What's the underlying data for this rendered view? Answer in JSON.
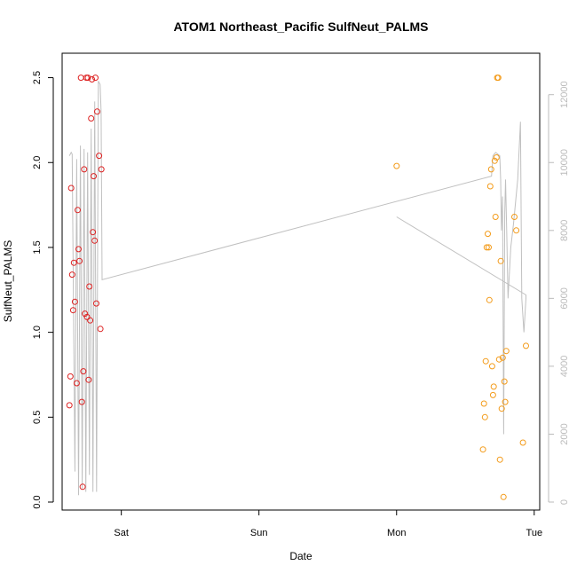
{
  "chart_data": {
    "type": "scatter",
    "title": "ATOM1 Northeast_Pacific SulfNeut_PALMS",
    "xlabel": "Date",
    "ylabel": "SulfNeut_PALMS",
    "x_unit": "days",
    "x_ticks": [
      {
        "x": 1.0,
        "label": "Sat"
      },
      {
        "x": 2.0,
        "label": "Sun"
      },
      {
        "x": 3.0,
        "label": "Mon"
      },
      {
        "x": 4.0,
        "label": "Tue"
      }
    ],
    "xlim": [
      0.57,
      4.04
    ],
    "ylim": [
      0,
      2.55
    ],
    "y_ticks": [
      0.0,
      0.5,
      1.0,
      1.5,
      2.0,
      2.5
    ],
    "y_tick_labels": [
      "0.0",
      "0.5",
      "1.0",
      "1.5",
      "2.0",
      "2.5"
    ],
    "y2lim": [
      0,
      12750
    ],
    "y2_ticks": [
      0,
      2000,
      4000,
      6000,
      8000,
      10000,
      12000
    ],
    "y2_tick_labels": [
      "0",
      "2000",
      "4000",
      "6000",
      "8000",
      "10000",
      "12000"
    ],
    "colors": {
      "series_1": "#dd2222",
      "series_2": "#f39b1a",
      "altitude": "#c0c0c0",
      "axis": "#000000",
      "axis_right": "#bbbbbb"
    },
    "series": [
      {
        "marker": "open-circle",
        "color": "#dd2222",
        "points": [
          [
            0.623,
            0.57
          ],
          [
            0.63,
            0.74
          ],
          [
            0.636,
            1.85
          ],
          [
            0.643,
            1.34
          ],
          [
            0.65,
            1.13
          ],
          [
            0.656,
            1.41
          ],
          [
            0.663,
            1.18
          ],
          [
            0.676,
            0.7
          ],
          [
            0.683,
            1.72
          ],
          [
            0.689,
            1.49
          ],
          [
            0.696,
            1.42
          ],
          [
            0.707,
            2.5
          ],
          [
            0.713,
            0.59
          ],
          [
            0.719,
            0.09
          ],
          [
            0.724,
            0.77
          ],
          [
            0.73,
            1.96
          ],
          [
            0.736,
            1.11
          ],
          [
            0.746,
            2.5
          ],
          [
            0.751,
            1.09
          ],
          [
            0.757,
            2.5
          ],
          [
            0.763,
            0.72
          ],
          [
            0.768,
            1.27
          ],
          [
            0.774,
            1.07
          ],
          [
            0.781,
            2.26
          ],
          [
            0.787,
            2.49
          ],
          [
            0.793,
            1.59
          ],
          [
            0.799,
            1.92
          ],
          [
            0.806,
            1.54
          ],
          [
            0.812,
            2.5
          ],
          [
            0.818,
            1.17
          ],
          [
            0.825,
            2.3
          ],
          [
            0.838,
            2.04
          ],
          [
            0.848,
            1.02
          ],
          [
            0.855,
            1.96
          ]
        ]
      },
      {
        "marker": "open-circle",
        "color": "#f39b1a",
        "points": [
          [
            3.0,
            1.98
          ],
          [
            3.628,
            0.31
          ],
          [
            3.635,
            0.58
          ],
          [
            3.642,
            0.5
          ],
          [
            3.648,
            0.83
          ],
          [
            3.655,
            1.5
          ],
          [
            3.663,
            1.58
          ],
          [
            3.669,
            1.5
          ],
          [
            3.674,
            1.19
          ],
          [
            3.681,
            1.86
          ],
          [
            3.687,
            1.96
          ],
          [
            3.694,
            0.8
          ],
          [
            3.701,
            0.63
          ],
          [
            3.706,
            0.68
          ],
          [
            3.713,
            2.01
          ],
          [
            3.719,
            1.68
          ],
          [
            3.726,
            2.03
          ],
          [
            3.731,
            2.5
          ],
          [
            3.739,
            2.5
          ],
          [
            3.745,
            0.84
          ],
          [
            3.751,
            0.25
          ],
          [
            3.757,
            1.42
          ],
          [
            3.764,
            0.55
          ],
          [
            3.771,
            0.85
          ],
          [
            3.777,
            0.03
          ],
          [
            3.783,
            0.71
          ],
          [
            3.789,
            0.59
          ],
          [
            3.797,
            0.89
          ],
          [
            3.856,
            1.68
          ],
          [
            3.87,
            1.6
          ],
          [
            3.918,
            0.35
          ],
          [
            3.94,
            0.92
          ]
        ]
      }
    ],
    "altitude_track": {
      "axis": "right",
      "color": "#c0c0c0",
      "points": [
        [
          0.623,
          10200
        ],
        [
          0.636,
          10300
        ],
        [
          0.643,
          10250
        ],
        [
          0.663,
          900
        ],
        [
          0.676,
          10100
        ],
        [
          0.689,
          200
        ],
        [
          0.703,
          10500
        ],
        [
          0.716,
          400
        ],
        [
          0.729,
          10400
        ],
        [
          0.742,
          300
        ],
        [
          0.755,
          10300
        ],
        [
          0.768,
          800
        ],
        [
          0.781,
          11000
        ],
        [
          0.794,
          300
        ],
        [
          0.807,
          11800
        ],
        [
          0.82,
          300
        ],
        [
          0.833,
          12400
        ],
        [
          0.846,
          12300
        ],
        [
          0.853,
          11500
        ],
        [
          0.86,
          6550
        ],
        [
          3.69,
          9600
        ],
        [
          3.7,
          10200
        ],
        [
          3.72,
          10300
        ],
        [
          3.75,
          10200
        ],
        [
          3.756,
          9500
        ],
        [
          3.762,
          8000
        ],
        [
          3.77,
          9000
        ],
        [
          3.778,
          2000
        ],
        [
          3.786,
          8500
        ],
        [
          3.792,
          9500
        ],
        [
          3.8,
          8000
        ],
        [
          3.81,
          6000
        ],
        [
          3.83,
          7500
        ],
        [
          3.85,
          8200
        ],
        [
          3.88,
          9500
        ],
        [
          3.9,
          11200
        ],
        [
          3.91,
          6000
        ],
        [
          3.925,
          5000
        ],
        [
          3.94,
          6000
        ],
        [
          3.94,
          6100
        ],
        [
          3.0,
          8400
        ]
      ]
    }
  }
}
